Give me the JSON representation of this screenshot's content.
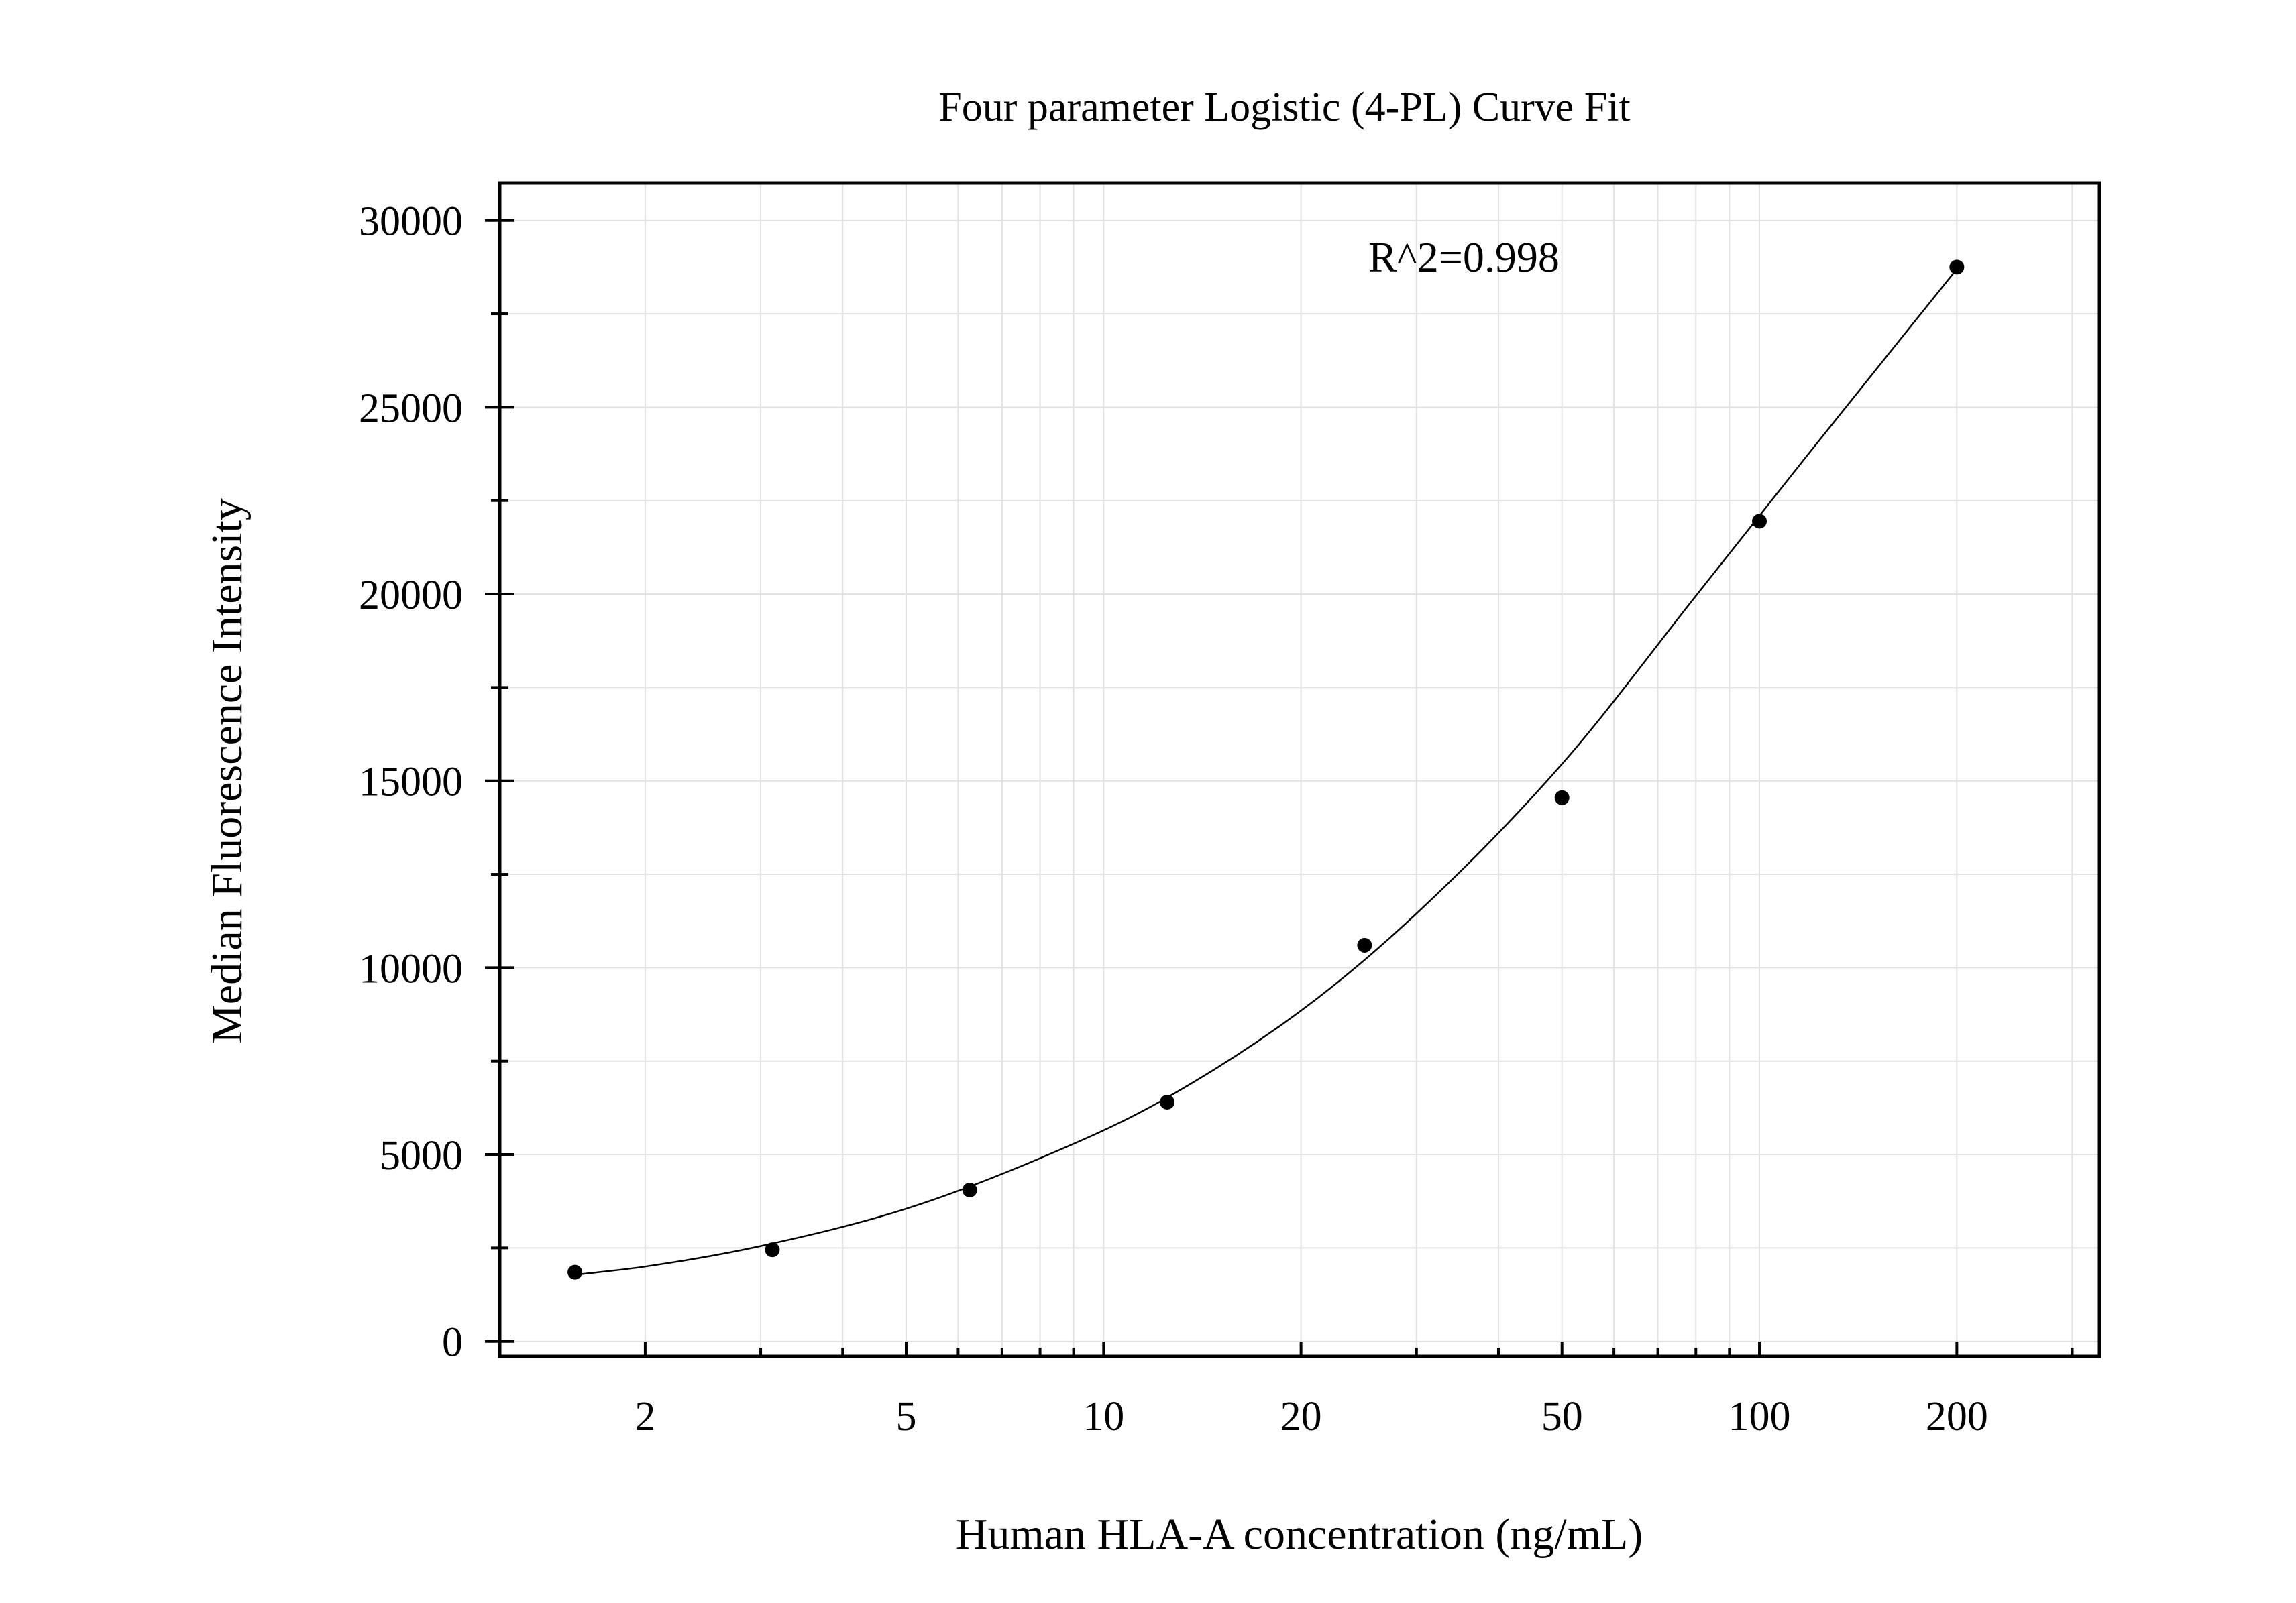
{
  "chart_data": {
    "type": "scatter",
    "title": "Four parameter Logistic (4-PL) Curve Fit",
    "xlabel": "Human HLA-A concentration (ng/mL)",
    "ylabel": "Median Fluorescence Intensity",
    "xscale": "log",
    "xlim": [
      1.2,
      330
    ],
    "ylim": [
      -400,
      31000
    ],
    "x_ticks": [
      2,
      5,
      10,
      20,
      50,
      100,
      200
    ],
    "x_tick_labels": [
      "2",
      "5",
      "10",
      "20",
      "50",
      "100",
      "200"
    ],
    "y_ticks": [
      0,
      5000,
      10000,
      15000,
      20000,
      25000,
      30000
    ],
    "y_tick_labels": [
      "0",
      "5000",
      "10000",
      "15000",
      "20000",
      "25000",
      "30000"
    ],
    "grid": true,
    "annotation": "R^2=0.998",
    "series": [
      {
        "type": "scatter",
        "x": [
          1.5625,
          3.125,
          6.25,
          12.5,
          25,
          50,
          100,
          200
        ],
        "y": [
          1850,
          2450,
          4050,
          6400,
          10600,
          14550,
          21950,
          28750
        ]
      },
      {
        "type": "line",
        "fit": "4PL",
        "x": [
          1.5625,
          2,
          3,
          5,
          8,
          12,
          20,
          30,
          50,
          80,
          120,
          200
        ],
        "y": [
          1780,
          2000,
          2550,
          3550,
          4900,
          6350,
          8850,
          11450,
          15450,
          19950,
          23850,
          28700
        ]
      }
    ],
    "colors": {
      "points": "#000000",
      "curve": "#000000",
      "grid": "#e2e2e2"
    }
  }
}
